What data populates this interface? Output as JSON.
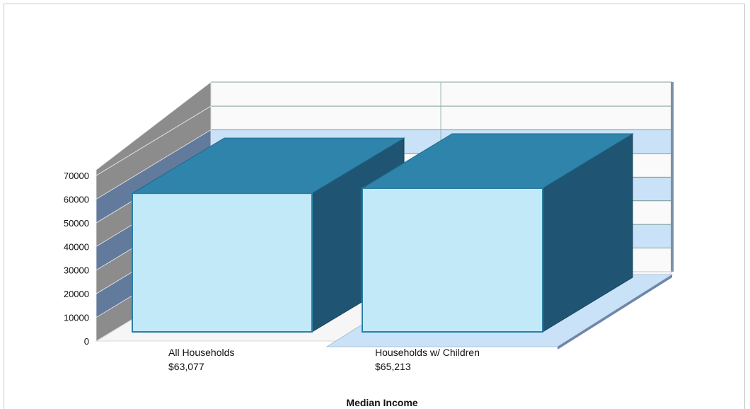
{
  "chart_data": {
    "type": "bar",
    "title": "",
    "xlabel": "Median Income",
    "ylabel": "",
    "ylim": [
      0,
      70000
    ],
    "yticks": [
      0,
      10000,
      20000,
      30000,
      40000,
      50000,
      60000,
      70000
    ],
    "grid": true,
    "legend": "none",
    "categories": [
      "All Households",
      "Households w/ Children"
    ],
    "category_value_labels": [
      "$63,077",
      "$65,213"
    ],
    "values": [
      63077,
      65213
    ],
    "colors": {
      "bar_front": "#c2e9f8",
      "bar_top": "#2e84aa",
      "bar_side": "#1f5572",
      "wall_band": "#c9e2f7",
      "left_wall_a": "#8c8c8c",
      "left_wall_b": "#627a9c",
      "floor_shadow": "#c9e2f7"
    }
  }
}
